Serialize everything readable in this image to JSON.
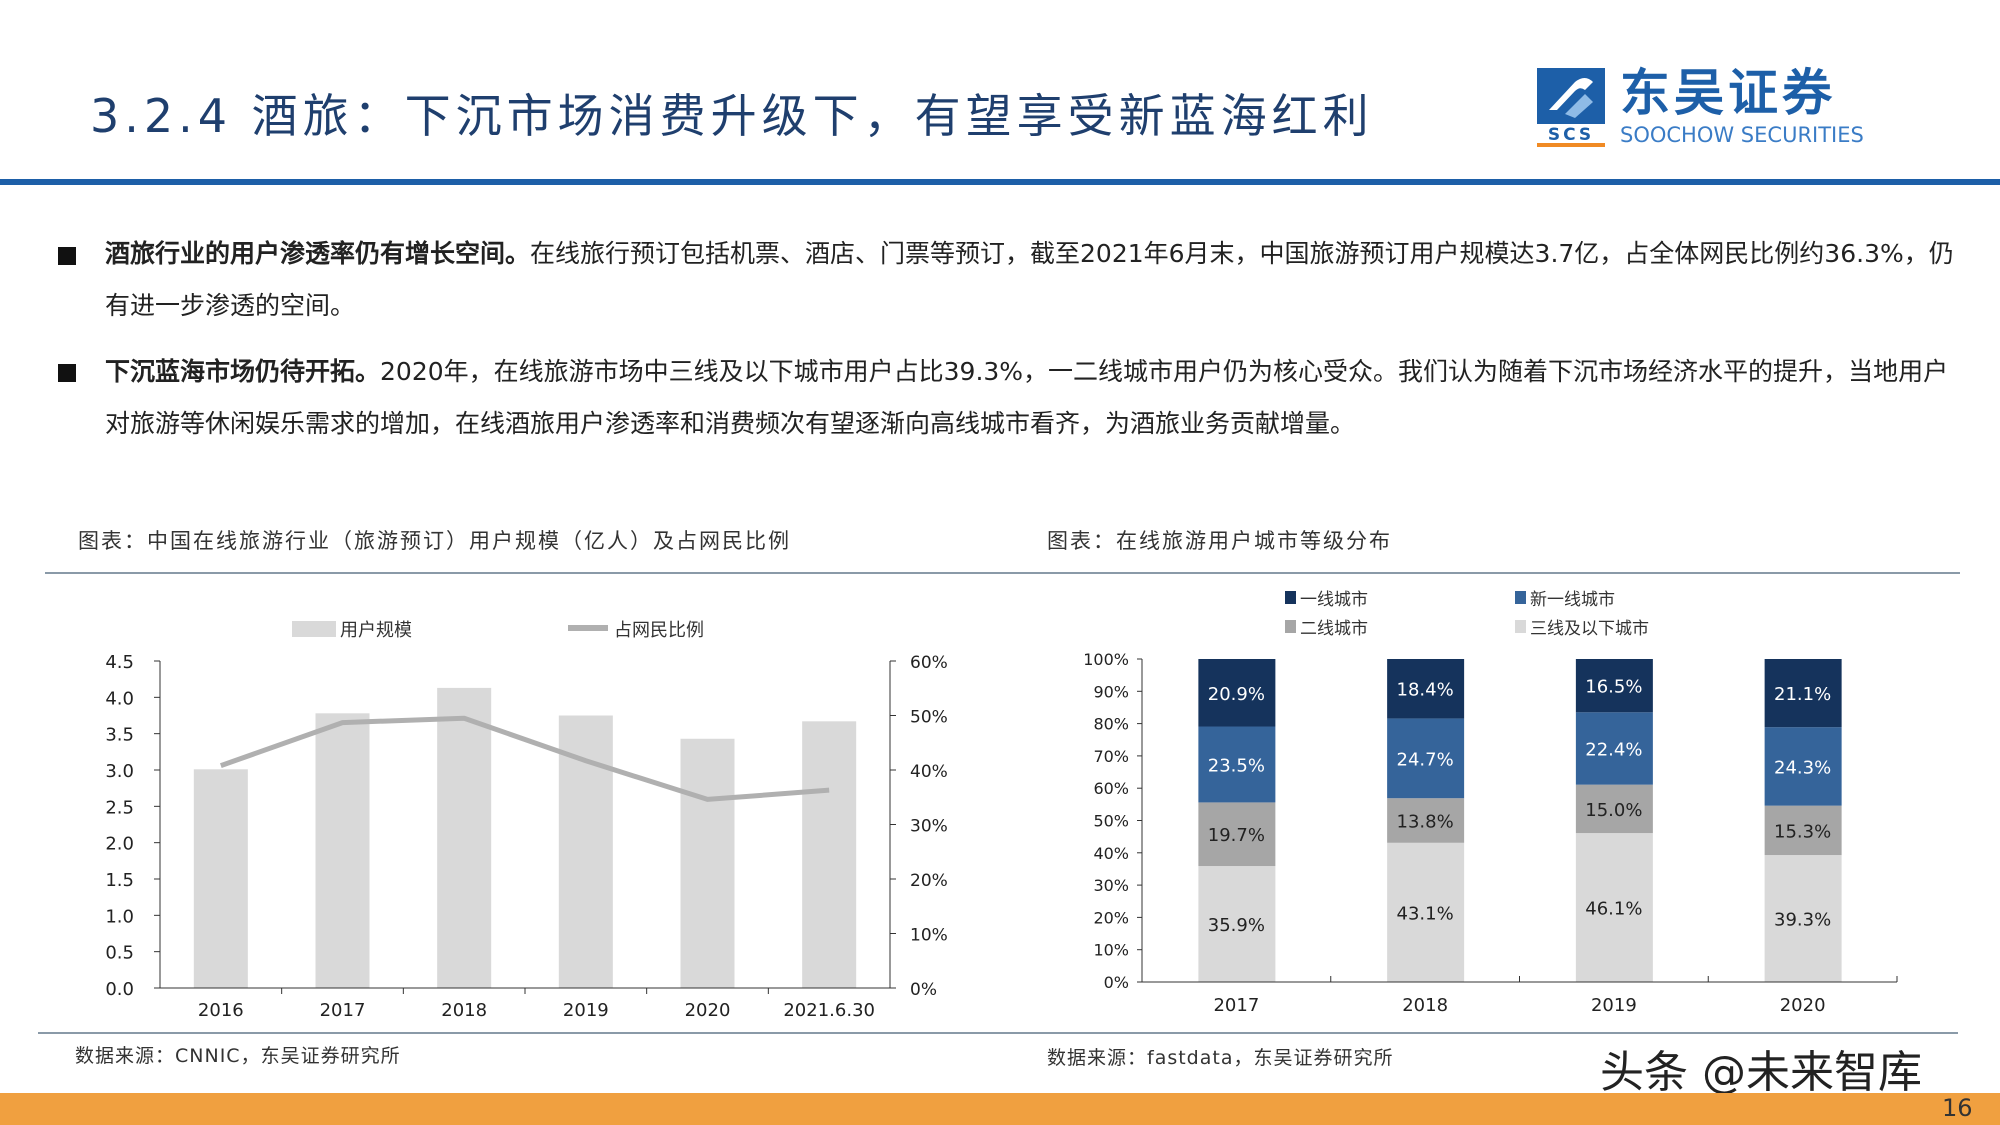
{
  "header": {
    "title": "3.2.4 酒旅：下沉市场消费升级下，有望享受新蓝海红利",
    "logo": {
      "abbr": "SCS",
      "name_cn": "东吴证券",
      "name_en": "SOOCHOW SECURITIES",
      "color": "#1d5fa8"
    }
  },
  "bullets": [
    {
      "bold": "酒旅行业的用户渗透率仍有增长空间。",
      "text": "在线旅行预订包括机票、酒店、门票等预订，截至2021年6月末，中国旅游预订用户规模达3.7亿，占全体网民比例约36.3%，仍有进一步渗透的空间。"
    },
    {
      "bold": "下沉蓝海市场仍待开拓。",
      "text": "2020年，在线旅游市场中三线及以下城市用户占比39.3%，一二线城市用户仍为核心受众。我们认为随着下沉市场经济水平的提升，当地用户对旅游等休闲娱乐需求的增加，在线酒旅用户渗透率和消费频次有望逐渐向高线城市看齐，为酒旅业务贡献增量。"
    }
  ],
  "chart_left": {
    "caption": "图表：中国在线旅游行业（旅游预订）用户规模（亿人）及占网民比例",
    "source": "数据来源：CNNIC，东吴证券研究所"
  },
  "chart_right": {
    "caption": "图表：在线旅游用户城市等级分布",
    "source": "数据来源：fastdata，东吴证券研究所"
  },
  "chart_data": [
    {
      "type": "bar",
      "categories": [
        "2016",
        "2017",
        "2018",
        "2019",
        "2020",
        "2021.6.30"
      ],
      "series": [
        {
          "name": "用户规模",
          "type": "bar",
          "axis": "left",
          "values": [
            3.01,
            3.78,
            4.13,
            3.75,
            3.43,
            3.67
          ],
          "color": "#d9d9d9"
        },
        {
          "name": "占网民比例",
          "type": "line",
          "axis": "right",
          "values": [
            40.8,
            48.7,
            49.5,
            41.7,
            34.6,
            36.3
          ],
          "color": "#b0b0b0"
        }
      ],
      "ylim": [
        0,
        4.5
      ],
      "yticks": [
        "0.0",
        "0.5",
        "1.0",
        "1.5",
        "2.0",
        "2.5",
        "3.0",
        "3.5",
        "4.0",
        "4.5"
      ],
      "y2lim": [
        0,
        60
      ],
      "y2ticks": [
        "0%",
        "10%",
        "20%",
        "30%",
        "40%",
        "50%",
        "60%"
      ],
      "legend": "top",
      "grid": false
    },
    {
      "type": "bar",
      "stacked": true,
      "categories": [
        "2017",
        "2018",
        "2019",
        "2020"
      ],
      "series": [
        {
          "name": "三线及以下城市",
          "values": [
            35.9,
            43.1,
            46.1,
            39.3
          ],
          "labels": [
            "35.9%",
            "43.1%",
            "46.1%",
            "39.3%"
          ],
          "color": "#d9d9d9",
          "label_color": "#222222"
        },
        {
          "name": "二线城市",
          "values": [
            19.7,
            13.8,
            15.0,
            15.3
          ],
          "labels": [
            "19.7%",
            "13.8%",
            "15.0%",
            "15.3%"
          ],
          "color": "#a6a6a6",
          "label_color": "#222222"
        },
        {
          "name": "新一线城市",
          "values": [
            23.5,
            24.7,
            22.4,
            24.3
          ],
          "labels": [
            "23.5%",
            "24.7%",
            "22.4%",
            "24.3%"
          ],
          "color": "#35649a",
          "label_color": "#ffffff"
        },
        {
          "name": "一线城市",
          "values": [
            20.9,
            18.4,
            16.5,
            21.1
          ],
          "labels": [
            "20.9%",
            "18.4%",
            "16.5%",
            "21.1%"
          ],
          "color": "#15335c",
          "label_color": "#ffffff"
        }
      ],
      "legend_order": [
        "一线城市",
        "新一线城市",
        "二线城市",
        "三线及以下城市"
      ],
      "ylim": [
        0,
        100
      ],
      "yticks": [
        "0%",
        "10%",
        "20%",
        "30%",
        "40%",
        "50%",
        "60%",
        "70%",
        "80%",
        "90%",
        "100%"
      ],
      "legend": "top",
      "grid": false
    }
  ],
  "watermark": "头条 @未来智库",
  "footer": {
    "page": "16",
    "color": "#f0a040"
  }
}
